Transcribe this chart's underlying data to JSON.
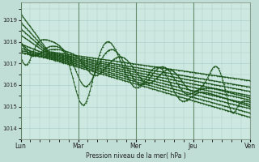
{
  "bg_color": "#c0ddd6",
  "plot_bg_color": "#cce8e0",
  "grid_color": "#a8ccc4",
  "line_color": "#1a5218",
  "ylabel": "Pression niveau de la mer( hPa )",
  "ylim": [
    1013.5,
    1019.8
  ],
  "yticks": [
    1014,
    1015,
    1016,
    1017,
    1018,
    1019
  ],
  "day_labels": [
    "Lun",
    "Mar",
    "Mer",
    "Jeu",
    "Ven"
  ],
  "day_positions": [
    0,
    0.25,
    0.5,
    0.75,
    1.0
  ],
  "num_straight": 9,
  "num_wavy": 3
}
